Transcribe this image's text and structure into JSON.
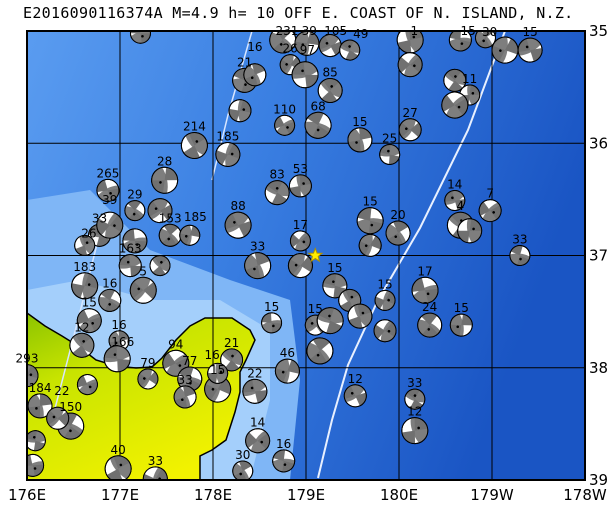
{
  "title": "E2016090116374A M=4.9 h= 10 OFF E. COAST OF N. ISLAND, N.Z.",
  "map": {
    "lon_range": [
      176,
      182
    ],
    "lat_range": [
      35,
      39
    ],
    "lon_ticks": [
      {
        "value": 176,
        "label": "176E"
      },
      {
        "value": 177,
        "label": "177E"
      },
      {
        "value": 178,
        "label": "178E"
      },
      {
        "value": 179,
        "label": "179E"
      },
      {
        "value": 180,
        "label": "180E"
      },
      {
        "value": 181,
        "label": "179W"
      },
      {
        "value": 182,
        "label": "178W"
      }
    ],
    "lat_ticks": [
      {
        "value": 35,
        "label": "35S"
      },
      {
        "value": 36,
        "label": "36S"
      },
      {
        "value": 37,
        "label": "37S"
      },
      {
        "value": 38,
        "label": "38S"
      },
      {
        "value": 39,
        "label": "39S"
      }
    ],
    "grid": true,
    "colors": {
      "ocean_deep": "#1f5fcf",
      "ocean_mid": "#3f83e3",
      "ocean_shallow": "#9ccaf8",
      "land_low": "#e8f000",
      "land_mid": "#9cc800",
      "beachball_fill": "#707070",
      "main_event": "#ffee00"
    },
    "main_event": {
      "lon": 179.1,
      "lat": 37.0,
      "icon": "star-marker"
    }
  },
  "beachballs": [
    {
      "lon": 177.22,
      "lat": 35.02,
      "depth": ""
    },
    {
      "lon": 178.75,
      "lat": 35.08,
      "depth": "231"
    },
    {
      "lon": 179.01,
      "lat": 35.11,
      "depth": "39"
    },
    {
      "lon": 179.26,
      "lat": 35.13,
      "depth": "105"
    },
    {
      "lon": 179.47,
      "lat": 35.17,
      "depth": "49"
    },
    {
      "lon": 180.12,
      "lat": 35.08,
      "depth": "1"
    },
    {
      "lon": 180.12,
      "lat": 35.3,
      "depth": ""
    },
    {
      "lon": 180.66,
      "lat": 35.08,
      "depth": "15"
    },
    {
      "lon": 180.93,
      "lat": 35.06,
      "depth": "30"
    },
    {
      "lon": 181.14,
      "lat": 35.17,
      "depth": ""
    },
    {
      "lon": 181.41,
      "lat": 35.17,
      "depth": "15"
    },
    {
      "lon": 180.6,
      "lat": 35.44,
      "depth": ""
    },
    {
      "lon": 180.76,
      "lat": 35.57,
      "depth": "11"
    },
    {
      "lon": 180.6,
      "lat": 35.66,
      "depth": ""
    },
    {
      "lon": 178.34,
      "lat": 35.44,
      "depth": "21"
    },
    {
      "lon": 178.45,
      "lat": 35.39,
      "depth": "16"
    },
    {
      "lon": 178.83,
      "lat": 35.3,
      "depth": "26"
    },
    {
      "lon": 178.99,
      "lat": 35.39,
      "depth": "97"
    },
    {
      "lon": 179.26,
      "lat": 35.53,
      "depth": "85"
    },
    {
      "lon": 178.29,
      "lat": 35.71,
      "depth": ""
    },
    {
      "lon": 178.77,
      "lat": 35.84,
      "depth": "110"
    },
    {
      "lon": 179.13,
      "lat": 35.84,
      "depth": "68"
    },
    {
      "lon": 179.58,
      "lat": 35.97,
      "depth": "15"
    },
    {
      "lon": 180.12,
      "lat": 35.88,
      "depth": "27"
    },
    {
      "lon": 179.9,
      "lat": 36.1,
      "depth": "25"
    },
    {
      "lon": 177.8,
      "lat": 36.02,
      "depth": "214"
    },
    {
      "lon": 178.16,
      "lat": 36.1,
      "depth": "185"
    },
    {
      "lon": 176.87,
      "lat": 36.42,
      "depth": "265"
    },
    {
      "lon": 177.16,
      "lat": 36.6,
      "depth": "29"
    },
    {
      "lon": 177.48,
      "lat": 36.33,
      "depth": "28"
    },
    {
      "lon": 177.43,
      "lat": 36.6,
      "depth": ""
    },
    {
      "lon": 176.78,
      "lat": 36.82,
      "depth": "33"
    },
    {
      "lon": 176.62,
      "lat": 36.91,
      "depth": "26"
    },
    {
      "lon": 176.89,
      "lat": 36.73,
      "depth": "39"
    },
    {
      "lon": 177.16,
      "lat": 36.87,
      "depth": ""
    },
    {
      "lon": 177.54,
      "lat": 36.82,
      "depth": "153"
    },
    {
      "lon": 177.75,
      "lat": 36.82,
      "depth": "185"
    },
    {
      "lon": 178.27,
      "lat": 36.73,
      "depth": "88"
    },
    {
      "lon": 178.69,
      "lat": 36.44,
      "depth": "83"
    },
    {
      "lon": 178.94,
      "lat": 36.38,
      "depth": "53"
    },
    {
      "lon": 178.94,
      "lat": 36.87,
      "depth": "17"
    },
    {
      "lon": 179.69,
      "lat": 36.69,
      "depth": "15"
    },
    {
      "lon": 179.99,
      "lat": 36.8,
      "depth": "20"
    },
    {
      "lon": 179.69,
      "lat": 36.91,
      "depth": ""
    },
    {
      "lon": 180.6,
      "lat": 36.51,
      "depth": "14"
    },
    {
      "lon": 180.66,
      "lat": 36.73,
      "depth": "4"
    },
    {
      "lon": 180.76,
      "lat": 36.78,
      "depth": ""
    },
    {
      "lon": 180.98,
      "lat": 36.6,
      "depth": "7"
    },
    {
      "lon": 181.3,
      "lat": 37.0,
      "depth": "33"
    },
    {
      "lon": 178.48,
      "lat": 37.09,
      "depth": "33"
    },
    {
      "lon": 178.94,
      "lat": 37.09,
      "depth": ""
    },
    {
      "lon": 177.11,
      "lat": 37.09,
      "depth": "163"
    },
    {
      "lon": 177.43,
      "lat": 37.09,
      "depth": ""
    },
    {
      "lon": 176.62,
      "lat": 37.27,
      "depth": "183"
    },
    {
      "lon": 176.67,
      "lat": 37.58,
      "depth": "15"
    },
    {
      "lon": 176.89,
      "lat": 37.4,
      "depth": "16"
    },
    {
      "lon": 176.99,
      "lat": 37.76,
      "depth": "16"
    },
    {
      "lon": 177.25,
      "lat": 37.31,
      "depth": "5"
    },
    {
      "lon": 179.31,
      "lat": 37.27,
      "depth": "15"
    },
    {
      "lon": 179.47,
      "lat": 37.4,
      "depth": ""
    },
    {
      "lon": 179.85,
      "lat": 37.4,
      "depth": "15"
    },
    {
      "lon": 180.28,
      "lat": 37.31,
      "depth": "17"
    },
    {
      "lon": 180.33,
      "lat": 37.62,
      "depth": "24"
    },
    {
      "lon": 180.67,
      "lat": 37.62,
      "depth": "15"
    },
    {
      "lon": 179.1,
      "lat": 37.62,
      "depth": "15"
    },
    {
      "lon": 179.26,
      "lat": 37.58,
      "depth": ""
    },
    {
      "lon": 179.58,
      "lat": 37.54,
      "depth": ""
    },
    {
      "lon": 179.85,
      "lat": 37.67,
      "depth": ""
    },
    {
      "lon": 178.63,
      "lat": 37.6,
      "depth": "15"
    },
    {
      "lon": 179.15,
      "lat": 37.85,
      "depth": ""
    },
    {
      "lon": 178.8,
      "lat": 38.03,
      "depth": "46"
    },
    {
      "lon": 179.53,
      "lat": 38.25,
      "depth": "12"
    },
    {
      "lon": 180.17,
      "lat": 38.28,
      "depth": "33"
    },
    {
      "lon": 180.17,
      "lat": 38.56,
      "depth": "12"
    },
    {
      "lon": 178.48,
      "lat": 38.65,
      "depth": "14"
    },
    {
      "lon": 178.76,
      "lat": 38.83,
      "depth": "16"
    },
    {
      "lon": 178.32,
      "lat": 38.92,
      "depth": "30"
    },
    {
      "lon": 178.05,
      "lat": 38.19,
      "depth": "15"
    },
    {
      "lon": 178.45,
      "lat": 38.21,
      "depth": "22"
    },
    {
      "lon": 178.2,
      "lat": 37.93,
      "depth": "21"
    },
    {
      "lon": 178.05,
      "lat": 38.05,
      "depth": "16"
    },
    {
      "lon": 177.6,
      "lat": 37.96,
      "depth": "94"
    },
    {
      "lon": 177.75,
      "lat": 38.1,
      "depth": "77"
    },
    {
      "lon": 177.7,
      "lat": 38.26,
      "depth": "33"
    },
    {
      "lon": 177.3,
      "lat": 38.1,
      "depth": "79"
    },
    {
      "lon": 176.97,
      "lat": 37.92,
      "depth": "166"
    },
    {
      "lon": 176.59,
      "lat": 37.8,
      "depth": "12"
    },
    {
      "lon": 176.0,
      "lat": 38.07,
      "depth": "293"
    },
    {
      "lon": 176.65,
      "lat": 38.15,
      "depth": ""
    },
    {
      "lon": 176.47,
      "lat": 38.52,
      "depth": "150"
    },
    {
      "lon": 176.14,
      "lat": 38.34,
      "depth": "184"
    },
    {
      "lon": 176.33,
      "lat": 38.45,
      "depth": "22"
    },
    {
      "lon": 176.09,
      "lat": 38.65,
      "depth": ""
    },
    {
      "lon": 176.98,
      "lat": 38.9,
      "depth": "40"
    },
    {
      "lon": 177.38,
      "lat": 38.99,
      "depth": "33"
    },
    {
      "lon": 176.06,
      "lat": 38.87,
      "depth": ""
    }
  ]
}
